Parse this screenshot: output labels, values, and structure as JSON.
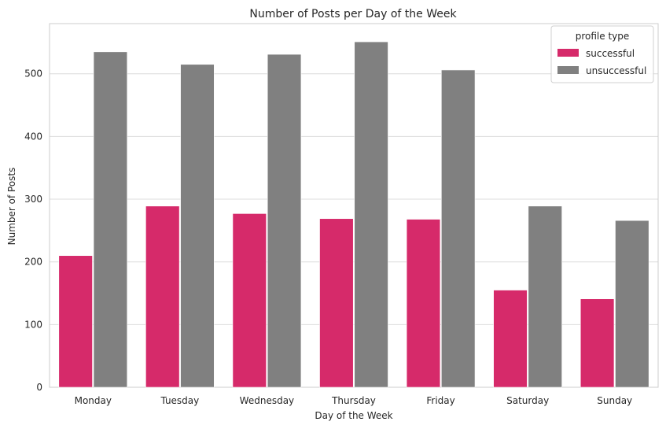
{
  "chart_data": {
    "type": "bar",
    "title": "Number of Posts per Day of the Week",
    "xlabel": "Day of the Week",
    "ylabel": "Number of Posts",
    "categories": [
      "Monday",
      "Tuesday",
      "Wednesday",
      "Thursday",
      "Friday",
      "Saturday",
      "Sunday"
    ],
    "series": [
      {
        "name": "successful",
        "color": "#d62a6a",
        "values": [
          210,
          289,
          277,
          269,
          268,
          155,
          141
        ]
      },
      {
        "name": "unsuccessful",
        "color": "#808080",
        "values": [
          535,
          515,
          531,
          551,
          506,
          289,
          266
        ]
      }
    ],
    "ylim": [
      0,
      580
    ],
    "yticks": [
      0,
      100,
      200,
      300,
      400,
      500
    ],
    "grid": true,
    "legend": {
      "title": "profile type",
      "placement": "top-right"
    }
  }
}
